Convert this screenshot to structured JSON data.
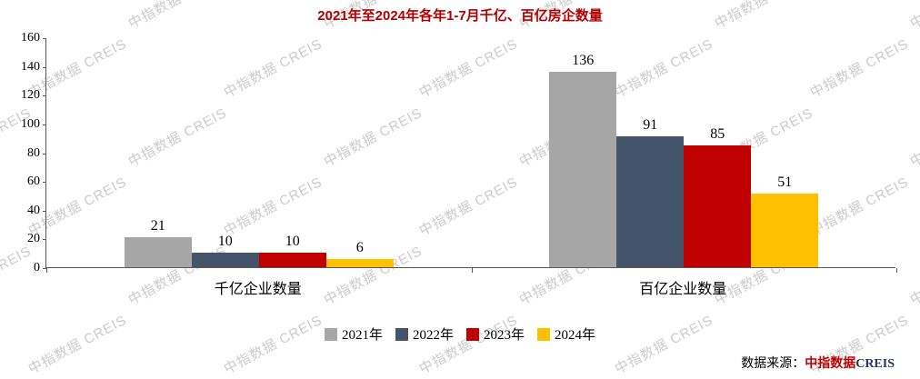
{
  "title": "2021年至2024年各年1-7月千亿、百亿房企数量",
  "watermark_text": "中指数据 CREIS",
  "source": {
    "prefix": "数据来源：",
    "brand_cn": "中指数据",
    "brand_en": "CREIS"
  },
  "colors": {
    "title": "#B20000",
    "axis": "#595959",
    "watermark": "#CBCBCB",
    "source_brand_cn": "#C00000",
    "source_brand_en": "#1F3864"
  },
  "chart_data": {
    "type": "bar",
    "title": "2021年至2024年各年1-7月千亿、百亿房企数量",
    "categories": [
      "千亿企业数量",
      "百亿企业数量"
    ],
    "series": [
      {
        "name": "2021年",
        "color": "#A6A6A6",
        "values": [
          21,
          136
        ]
      },
      {
        "name": "2022年",
        "color": "#44546A",
        "values": [
          10,
          91
        ]
      },
      {
        "name": "2023年",
        "color": "#C00000",
        "values": [
          10,
          85
        ]
      },
      {
        "name": "2024年",
        "color": "#FFC000",
        "values": [
          6,
          51
        ]
      }
    ],
    "ylim": [
      0,
      160
    ],
    "ytick_step": 20,
    "grid": false,
    "legend_position": "bottom"
  }
}
